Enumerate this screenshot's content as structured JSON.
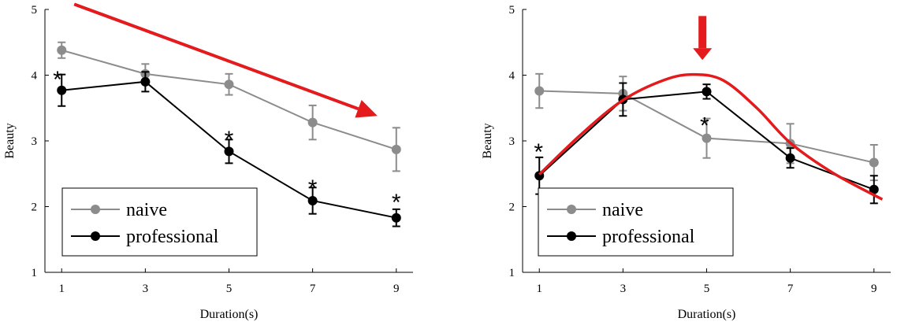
{
  "chart_data": [
    {
      "type": "line",
      "xlabel": "Duration(s)",
      "ylabel": "Beauty",
      "x": [
        1,
        3,
        5,
        7,
        9
      ],
      "xticks": [
        "1",
        "3",
        "5",
        "7",
        "9"
      ],
      "yticks": [
        "1",
        "2",
        "3",
        "4",
        "5"
      ],
      "xlim": [
        0.6,
        9.4
      ],
      "ylim": [
        1,
        5
      ],
      "grid": false,
      "legend": "bottom-left",
      "series": [
        {
          "name": "naive",
          "color": "#8c8c8c",
          "values": [
            4.38,
            4.02,
            3.86,
            3.28,
            2.87
          ],
          "errors": [
            0.12,
            0.15,
            0.16,
            0.26,
            0.33
          ]
        },
        {
          "name": "professional",
          "color": "#000000",
          "values": [
            3.77,
            3.9,
            2.84,
            2.09,
            1.83
          ],
          "errors": [
            0.24,
            0.15,
            0.18,
            0.2,
            0.13
          ]
        }
      ],
      "annotations": [
        {
          "text": "*",
          "x": 0.9,
          "y": 4.03
        },
        {
          "text": "*",
          "x": 5.0,
          "y": 3.12
        },
        {
          "text": "*",
          "x": 7.0,
          "y": 2.38
        },
        {
          "text": "*",
          "x": 9.0,
          "y": 2.16
        }
      ],
      "arrow": {
        "color": "#e41a1c",
        "from": [
          1.3,
          5.08
        ],
        "to": [
          8.55,
          3.38
        ]
      }
    },
    {
      "type": "line",
      "xlabel": "Duration(s)",
      "ylabel": "Beauty",
      "x": [
        1,
        3,
        5,
        7,
        9
      ],
      "xticks": [
        "1",
        "3",
        "5",
        "7",
        "9"
      ],
      "yticks": [
        "1",
        "2",
        "3",
        "4",
        "5"
      ],
      "xlim": [
        0.6,
        9.4
      ],
      "ylim": [
        1,
        5
      ],
      "grid": false,
      "legend": "bottom-left",
      "series": [
        {
          "name": "naive",
          "color": "#8c8c8c",
          "values": [
            3.76,
            3.72,
            3.04,
            2.96,
            2.67
          ],
          "errors": [
            0.26,
            0.26,
            0.3,
            0.3,
            0.27
          ]
        },
        {
          "name": "professional",
          "color": "#000000",
          "values": [
            2.47,
            3.63,
            3.75,
            2.74,
            2.26
          ],
          "errors": [
            0.28,
            0.25,
            0.11,
            0.15,
            0.21
          ]
        }
      ],
      "annotations": [
        {
          "text": "*",
          "x": 0.98,
          "y": 2.93
        },
        {
          "text": "*",
          "x": 4.95,
          "y": 3.33
        }
      ],
      "trend_curve": {
        "color": "#e41a1c",
        "x": [
          1.0,
          2.0,
          3.0,
          4.0,
          4.7,
          5.4,
          6.2,
          7.0,
          8.0,
          9.2
        ],
        "y": [
          2.49,
          3.1,
          3.62,
          3.93,
          4.01,
          3.92,
          3.5,
          2.97,
          2.52,
          2.11
        ]
      },
      "down_arrow": {
        "color": "#e41a1c",
        "x": 4.9,
        "from_y": 4.9,
        "to_y": 4.23
      }
    }
  ]
}
